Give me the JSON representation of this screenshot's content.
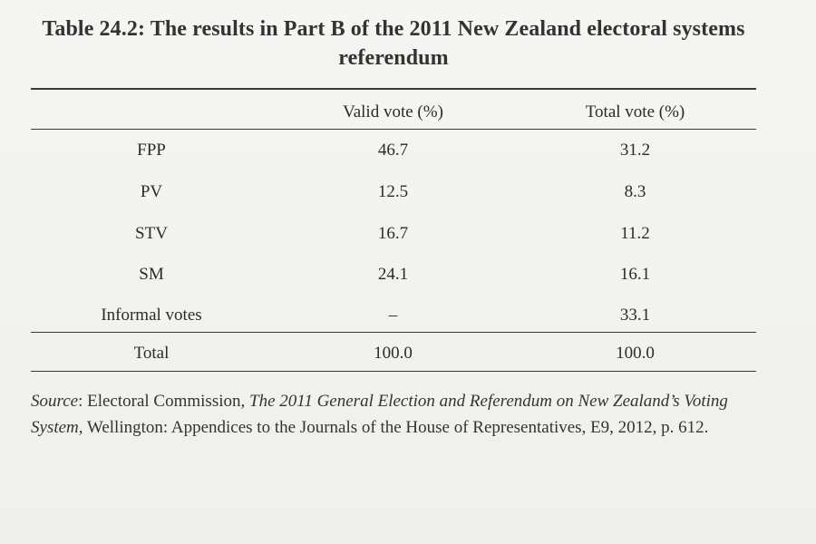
{
  "caption": {
    "line1": "Table 24.2: The results in Part B of the 2011 New Zealand electoral systems",
    "line2": "referendum"
  },
  "table": {
    "headers": [
      "",
      "Valid vote (%)",
      "Total vote (%)"
    ],
    "rows": [
      [
        "FPP",
        "46.7",
        "31.2"
      ],
      [
        "PV",
        "12.5",
        "8.3"
      ],
      [
        "STV",
        "16.7",
        "11.2"
      ],
      [
        "SM",
        "24.1",
        "16.1"
      ],
      [
        "Informal votes",
        "–",
        "33.1"
      ]
    ],
    "total_row": [
      "Total",
      "100.0",
      "100.0"
    ]
  },
  "source": {
    "label": "Source",
    "sep1": ": Electoral Commission, ",
    "title": "The 2011 General Election and Referendum on New Zealand’s Voting System",
    "rest": ", Wellington: Appendices to the Journals of the House of Representatives, E9, 2012, p. 612."
  }
}
